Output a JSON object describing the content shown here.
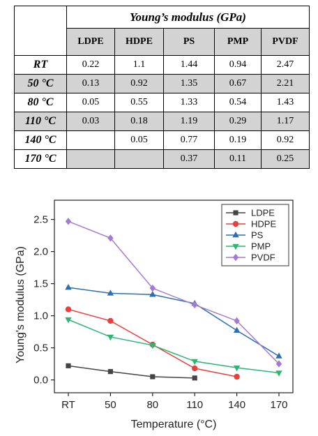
{
  "table": {
    "title": "Young’s modulus (GPa)",
    "columns": [
      "LDPE",
      "HDPE",
      "PS",
      "PMP",
      "PVDF"
    ],
    "rows": [
      {
        "label": "RT",
        "values": [
          "0.22",
          "1.1",
          "1.44",
          "0.94",
          "2.47"
        ]
      },
      {
        "label": "50 °C",
        "values": [
          "0.13",
          "0.92",
          "1.35",
          "0.67",
          "2.21"
        ]
      },
      {
        "label": "80 °C",
        "values": [
          "0.05",
          "0.55",
          "1.33",
          "0.54",
          "1.43"
        ]
      },
      {
        "label": "110 °C",
        "values": [
          "0.03",
          "0.18",
          "1.19",
          "0.29",
          "1.17"
        ]
      },
      {
        "label": "140 °C",
        "values": [
          "",
          "0.05",
          "0.77",
          "0.19",
          "0.92"
        ]
      },
      {
        "label": "170 °C",
        "values": [
          "",
          "",
          "0.37",
          "0.11",
          "0.25"
        ]
      }
    ]
  },
  "chart_data": {
    "type": "line",
    "categories": [
      "RT",
      "50",
      "80",
      "110",
      "140",
      "170"
    ],
    "xlabel": "Temperature (°C)",
    "ylabel": "Young's modulus (GPa)",
    "ylim": [
      -0.2,
      2.8
    ],
    "yticks": [
      0.0,
      0.5,
      1.0,
      1.5,
      2.0,
      2.5
    ],
    "ytick_labels": [
      "0.0",
      "0.5",
      "1.0",
      "1.5",
      "2.0",
      "2.5"
    ],
    "grid": false,
    "legend": "top-right",
    "series": [
      {
        "name": "LDPE",
        "color": "#444444",
        "marker": "square",
        "values": [
          0.22,
          0.13,
          0.05,
          0.03,
          null,
          null
        ]
      },
      {
        "name": "HDPE",
        "color": "#e8413d",
        "marker": "circle",
        "values": [
          1.1,
          0.92,
          0.55,
          0.18,
          0.05,
          null
        ]
      },
      {
        "name": "PS",
        "color": "#2a6fb3",
        "marker": "triangle-up",
        "values": [
          1.44,
          1.35,
          1.33,
          1.19,
          0.77,
          0.37
        ]
      },
      {
        "name": "PMP",
        "color": "#2bb673",
        "marker": "triangle-down",
        "values": [
          0.94,
          0.67,
          0.54,
          0.29,
          0.19,
          0.11
        ]
      },
      {
        "name": "PVDF",
        "color": "#a37bd1",
        "marker": "diamond",
        "values": [
          2.47,
          2.21,
          1.43,
          1.17,
          0.92,
          0.25
        ]
      }
    ]
  }
}
